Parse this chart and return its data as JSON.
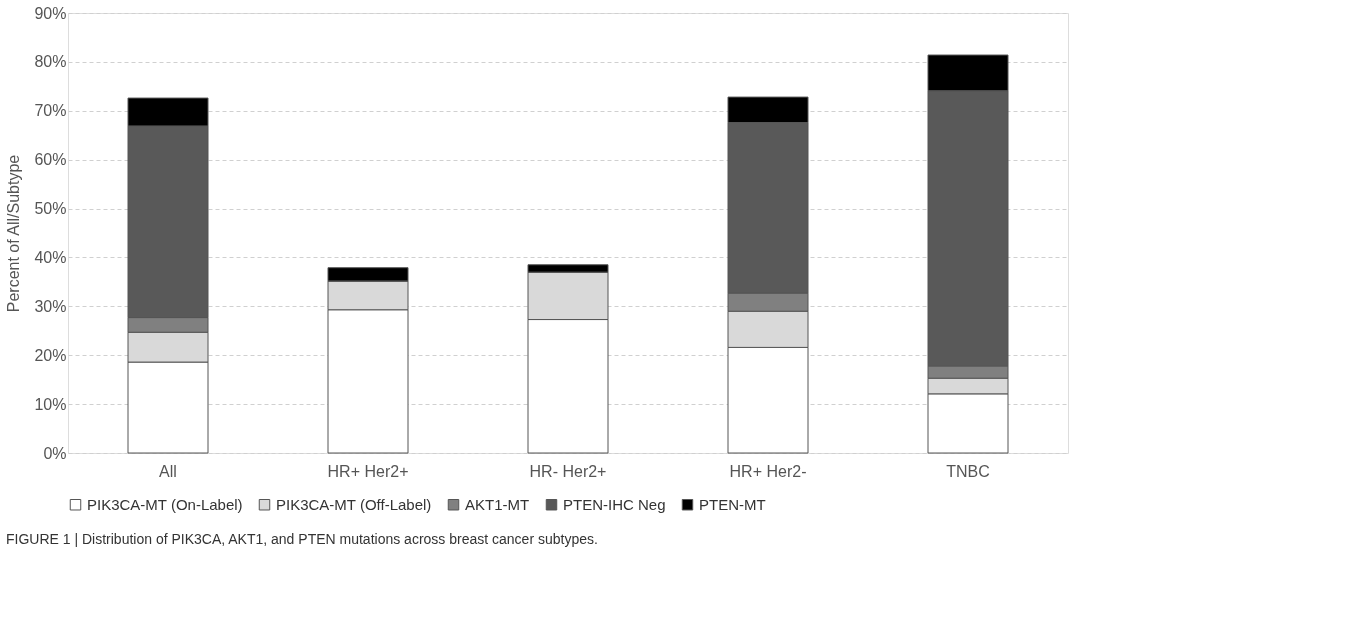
{
  "chart_data": {
    "type": "bar",
    "stacked": true,
    "ylabel": "Percent of All/Subtype",
    "categories": [
      "All",
      "HR+ Her2+",
      "HR- Her2+",
      "HR+ Her2-",
      "TNBC"
    ],
    "series": [
      {
        "name": "PIK3CA-MT (On-Label)",
        "color": "#ffffff",
        "values": [
          18.6,
          29.3,
          27.3,
          21.6,
          12.1
        ]
      },
      {
        "name": "PIK3CA-MT (Off-Label)",
        "color": "#d9d9d9",
        "values": [
          6.1,
          5.9,
          9.7,
          7.4,
          3.2
        ]
      },
      {
        "name": "AKT1-MT",
        "color": "#808080",
        "values": [
          3.0,
          0,
          0,
          3.7,
          2.5
        ]
      },
      {
        "name": "PTEN-IHC Neg",
        "color": "#595959",
        "values": [
          39.2,
          0,
          0,
          34.9,
          56.3
        ]
      },
      {
        "name": "PTEN-MT",
        "color": "#000000",
        "values": [
          5.7,
          2.7,
          1.5,
          5.2,
          7.3
        ]
      }
    ],
    "ylim": [
      0,
      90
    ],
    "yticks": [
      {
        "value": 0,
        "label": "0%"
      },
      {
        "value": 10,
        "label": "10%"
      },
      {
        "value": 20,
        "label": "20%"
      },
      {
        "value": 30,
        "label": "30%"
      },
      {
        "value": 40,
        "label": "40%"
      },
      {
        "value": 50,
        "label": "50%"
      },
      {
        "value": 60,
        "label": "60%"
      },
      {
        "value": 70,
        "label": "70%"
      },
      {
        "value": 80,
        "label": "80%"
      },
      {
        "value": 90,
        "label": "90%"
      }
    ],
    "grid": "y",
    "legend": "bottom",
    "annotations": [
      "FIGURE 1 | Distribution of PIK3CA, AKT1, and PTEN mutations across breast cancer subtypes."
    ]
  }
}
